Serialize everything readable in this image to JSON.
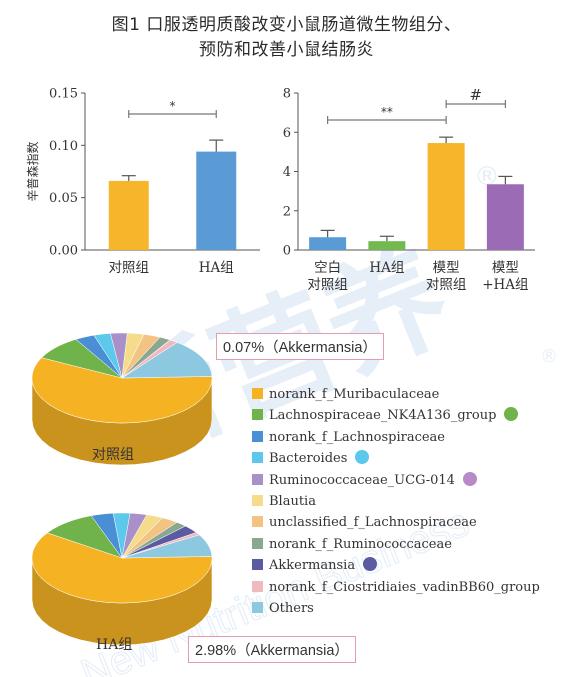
{
  "title": {
    "line1": "图1  口服透明质酸改变小鼠肠道微生物组分、",
    "line2": "预防和改善小鼠结肠炎"
  },
  "chart_data": [
    {
      "type": "bar",
      "title": "",
      "ylabel": "辛普森指数",
      "xlabel": "",
      "categories": [
        "对照组",
        "HA组"
      ],
      "values": [
        0.066,
        0.094
      ],
      "errors": [
        0.005,
        0.011
      ],
      "ylim": [
        0,
        0.15
      ],
      "yticks": [
        "0.00",
        "0.05",
        "0.10",
        "0.15"
      ],
      "colors": [
        "#f7b52c",
        "#5b9bd5"
      ],
      "significance": [
        {
          "from": 0,
          "to": 1,
          "label": "*"
        }
      ],
      "grid": false
    },
    {
      "type": "bar",
      "title": "",
      "ylabel": "",
      "xlabel": "",
      "categories": [
        [
          "空白",
          "对照组"
        ],
        [
          "HA组"
        ],
        [
          "模型",
          "对照组"
        ],
        [
          "模型",
          "+HA组"
        ]
      ],
      "values": [
        0.65,
        0.45,
        5.45,
        3.35
      ],
      "errors": [
        0.35,
        0.25,
        0.3,
        0.4
      ],
      "ylim": [
        0,
        8
      ],
      "yticks": [
        "0",
        "2",
        "4",
        "6",
        "8"
      ],
      "colors": [
        "#5b9bd5",
        "#74b94f",
        "#f7b52c",
        "#9b6cb5"
      ],
      "significance": [
        {
          "from": 0,
          "to": 2,
          "label": "**"
        },
        {
          "from": 2,
          "to": 3,
          "label": "#"
        }
      ],
      "grid": false
    },
    {
      "type": "pie",
      "title": "对照组",
      "callout": "0.07%（Akkermansia）",
      "legend_position": "right",
      "slices": [
        {
          "name": "norank_f_Muribaculaceae",
          "value": 58,
          "color": "#f5b324"
        },
        {
          "name": "Lachnospiraceae_NK4A136_group",
          "value": 9,
          "color": "#6fb34a"
        },
        {
          "name": "norank_f_Lachnospiraceae",
          "value": 3.5,
          "color": "#4a8fd6"
        },
        {
          "name": "Bacteroides",
          "value": 3,
          "color": "#5bc8ec"
        },
        {
          "name": "Ruminococcaceae_UCG-014",
          "value": 3,
          "color": "#a990c8"
        },
        {
          "name": "Blautia",
          "value": 3,
          "color": "#f5dc8a"
        },
        {
          "name": "unclassified_f_Lachnospiraceae",
          "value": 3,
          "color": "#f2c383"
        },
        {
          "name": "norank_f_Ruminococcaceae",
          "value": 2,
          "color": "#8aa790"
        },
        {
          "name": "Akkermansia",
          "value": 0.07,
          "color": "#5a5ba0"
        },
        {
          "name": "norank_f_Ciostridiaies_vadinBB60_group",
          "value": 1.5,
          "color": "#f0b9c0"
        },
        {
          "name": "Others",
          "value": 13.93,
          "color": "#8cc8e0"
        }
      ]
    },
    {
      "type": "pie",
      "title": "HA组",
      "callout": "2.98%（Akkermansia）",
      "slices": [
        {
          "name": "norank_f_Muribaculaceae",
          "value": 60,
          "color": "#f5b324"
        },
        {
          "name": "Lachnospiraceae_NK4A136_group",
          "value": 10,
          "color": "#6fb34a"
        },
        {
          "name": "norank_f_Lachnospiraceae",
          "value": 4,
          "color": "#4a8fd6"
        },
        {
          "name": "Bacteroides",
          "value": 3,
          "color": "#5bc8ec"
        },
        {
          "name": "Ruminococcaceae_UCG-014",
          "value": 3,
          "color": "#a990c8"
        },
        {
          "name": "Blautia",
          "value": 3,
          "color": "#f5dc8a"
        },
        {
          "name": "unclassified_f_Lachnospiraceae",
          "value": 3,
          "color": "#f2c383"
        },
        {
          "name": "norank_f_Ruminococcaceae",
          "value": 2,
          "color": "#8aa790"
        },
        {
          "name": "Akkermansia",
          "value": 2.98,
          "color": "#5a5ba0"
        },
        {
          "name": "norank_f_Ciostridiaies_vadinBB60_group",
          "value": 1,
          "color": "#f0b9c0"
        },
        {
          "name": "Others",
          "value": 8.02,
          "color": "#8cc8e0"
        }
      ]
    }
  ],
  "legend": [
    {
      "label": "norank_f_Muribaculaceae",
      "color": "#f5b324",
      "dot": ""
    },
    {
      "label": "Lachnospiraceae_NK4A136_group",
      "color": "#6fb34a",
      "dot": "#6fb34a"
    },
    {
      "label": "norank_f_Lachnospiraceae",
      "color": "#4a8fd6",
      "dot": ""
    },
    {
      "label": "Bacteroides",
      "color": "#5bc8ec",
      "dot": "#5bc8ec"
    },
    {
      "label": "Ruminococcaceae_UCG-014",
      "color": "#a990c8",
      "dot": "#b98bc6"
    },
    {
      "label": "Blautia",
      "color": "#f5dc8a",
      "dot": ""
    },
    {
      "label": "unclassified_f_Lachnospiraceae",
      "color": "#f2c383",
      "dot": ""
    },
    {
      "label": "norank_f_Ruminococcaceae",
      "color": "#8aa790",
      "dot": ""
    },
    {
      "label": "Akkermansia",
      "color": "#5a5ba0",
      "dot": "#5a5ba0"
    },
    {
      "label": "norank_f_Ciostridiaies_vadinBB60_group",
      "color": "#f0b9c0",
      "dot": ""
    },
    {
      "label": "Others",
      "color": "#8cc8e0",
      "dot": ""
    }
  ],
  "watermark": {
    "brand_cn": "新营养",
    "brand_en": "New Nutrition Business",
    "registered": "®"
  }
}
